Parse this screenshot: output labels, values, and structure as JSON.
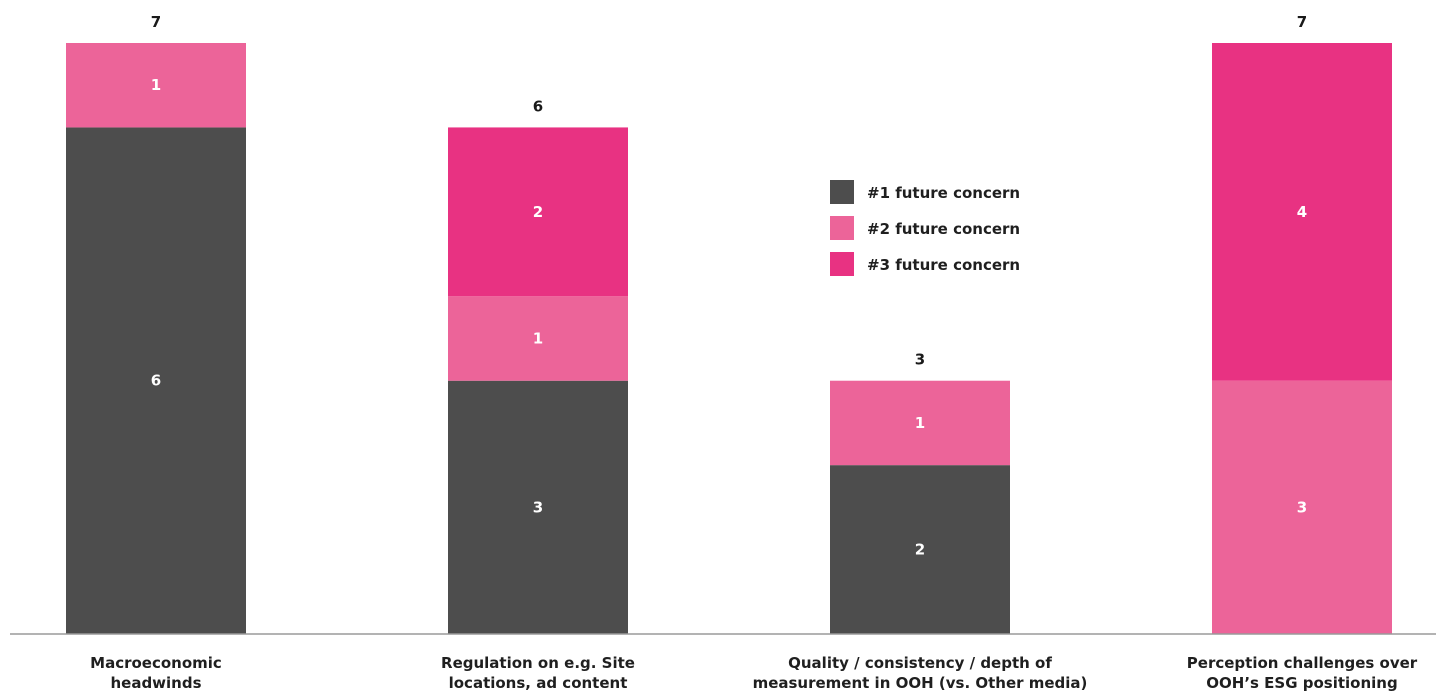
{
  "chart_data": {
    "type": "bar",
    "stacked": true,
    "categories": [
      [
        "Macroeconomic",
        "headwinds"
      ],
      [
        "Regulation on e.g. Site",
        "locations, ad content"
      ],
      [
        "Quality / consistency / depth of",
        "measurement in OOH (vs. Other media)"
      ],
      [
        "Perception challenges over",
        "OOH’s ESG positioning"
      ]
    ],
    "series": [
      {
        "name": "#1 future concern",
        "color": "#4d4d4d",
        "values": [
          6,
          3,
          2,
          0
        ]
      },
      {
        "name": "#2 future concern",
        "color": "#ec6499",
        "values": [
          1,
          1,
          1,
          3
        ]
      },
      {
        "name": "#3 future concern",
        "color": "#e83282",
        "values": [
          0,
          2,
          0,
          4
        ]
      }
    ],
    "totals": [
      7,
      6,
      3,
      7
    ],
    "ylim": [
      0,
      7
    ],
    "grid": false,
    "legend_position": "center"
  }
}
